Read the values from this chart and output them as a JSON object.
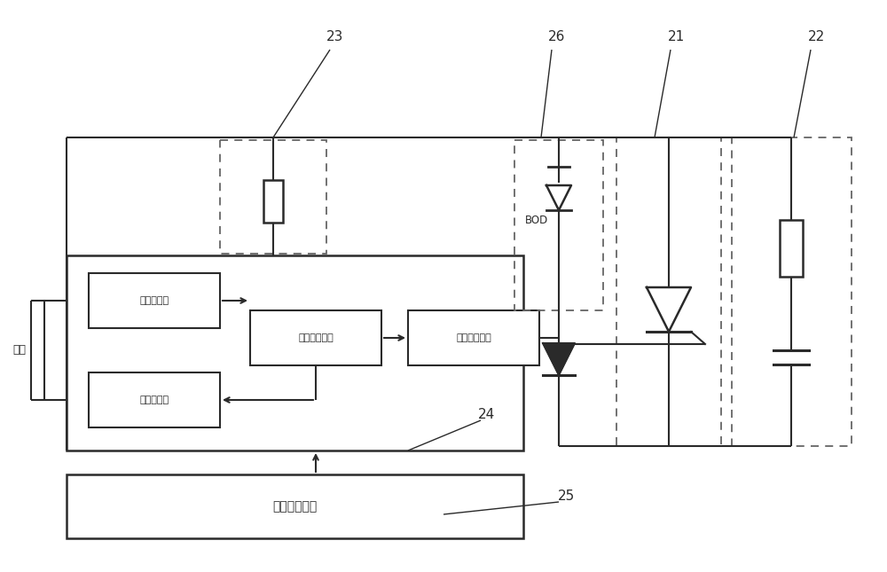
{
  "bg_color": "#ffffff",
  "lc": "#2a2a2a",
  "dc": "#666666",
  "label_23": "23",
  "label_21": "21",
  "label_22": "22",
  "label_24": "24",
  "label_25": "25",
  "label_26": "26",
  "label_bod": "BOD",
  "label_guangjie": "光线",
  "label_guangjieshou": "光接收回路",
  "label_guangfasong": "光发送回路",
  "label_luoji": "逻辑处理单元",
  "label_maichong": "脉冲放大单元",
  "label_ouhe": "耦合供电单元",
  "figw": 10.0,
  "figh": 6.45,
  "dpi": 100
}
